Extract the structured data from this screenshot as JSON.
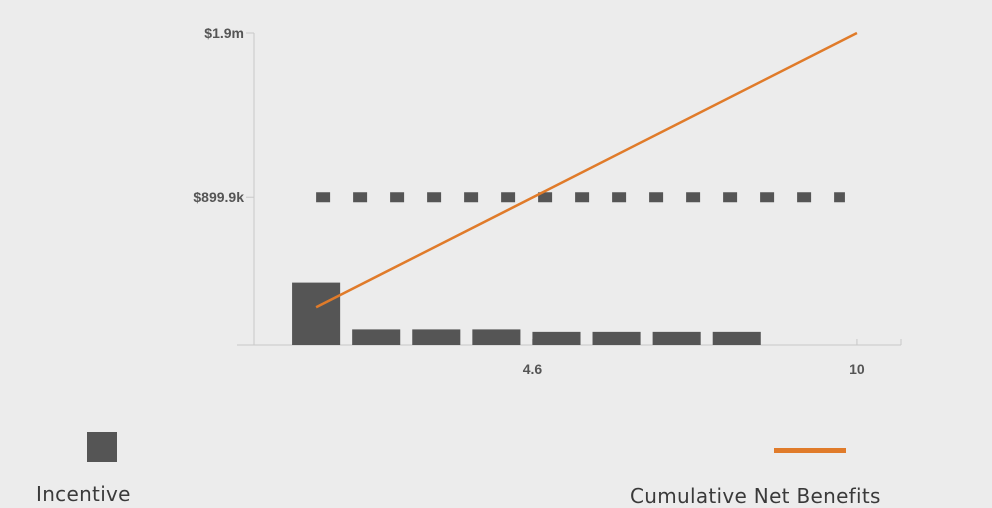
{
  "chart_data": {
    "type": "bar",
    "x_ticks": [
      {
        "value": 4.6,
        "label": "4.6"
      },
      {
        "value": 10,
        "label": "10"
      }
    ],
    "y_ticks": [
      {
        "value": 0,
        "label": ""
      },
      {
        "value": 899900,
        "label": "$899.9k"
      },
      {
        "value": 1900000,
        "label": "$1.9m"
      }
    ],
    "xlim": [
      -0.2,
      10.8
    ],
    "ylim": [
      0,
      1900000
    ],
    "series": [
      {
        "name": "Incentive",
        "type": "bar",
        "x": [
          1,
          2,
          3,
          4,
          5,
          6,
          7,
          8
        ],
        "values": [
          380000,
          95000,
          95000,
          95000,
          80000,
          80000,
          80000,
          80000
        ]
      },
      {
        "name": "Cumulative Net Benefits",
        "type": "line",
        "x": [
          1,
          10
        ],
        "values": [
          230000,
          1900000
        ]
      },
      {
        "type": "dashed-line",
        "x": [
          1,
          10
        ],
        "values": [
          899900,
          899900
        ]
      }
    ],
    "legend": "bottom"
  },
  "colors": {
    "bar": "#555555",
    "line": "#e07b2a",
    "axis": "#c8c8c8",
    "background": "#ececec",
    "dash": "#555555"
  }
}
